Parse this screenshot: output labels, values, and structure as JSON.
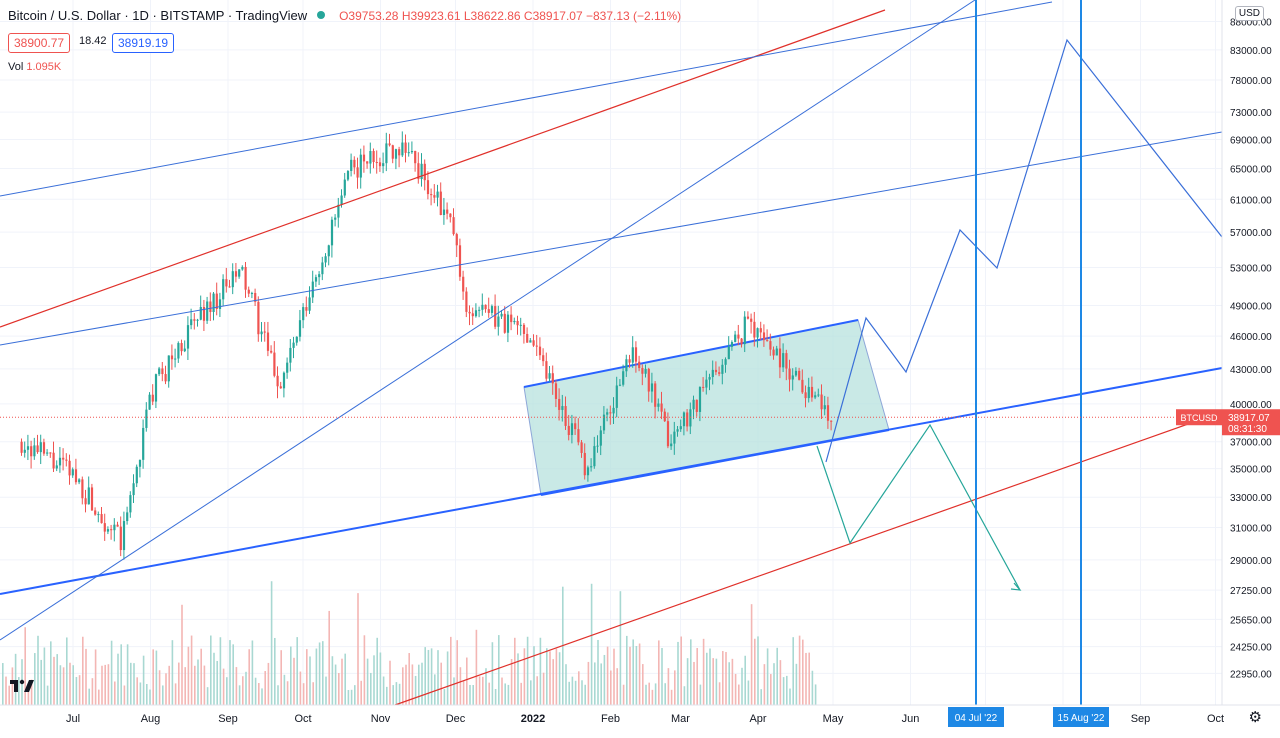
{
  "header": {
    "title": "Bitcoin / U.S. Dollar · 1D · BITSTAMP · TradingView",
    "ohlc": "O39753.28 H39923.61 L38622.86 C38917.07 −837.13 (−2.11%)",
    "bid": "38900.77",
    "spread": "18.42",
    "ask": "38919.19",
    "volume_label": "Vol",
    "volume_value": "1.095K"
  },
  "currency_badge": "USD",
  "price_tag": {
    "symbol": "BTCUSD",
    "price": "38917.07",
    "countdown": "08:31:30"
  },
  "colors": {
    "up": "#26a69a",
    "down": "#ef5350",
    "trend_blue": "#2962ff",
    "thin_blue": "#3a6fd8",
    "red_line": "#e0302a",
    "channel_fill": "#b2dfdb",
    "projection_green": "#26a69a",
    "vline": "#1e88e5"
  },
  "icons": [
    "tradingview-logo-icon",
    "settings-gear-icon"
  ],
  "chart_data": {
    "type": "candlestick",
    "y_axis_ticks": [
      88000,
      83000,
      78000,
      73000,
      69000,
      65000,
      61000,
      57000,
      53000,
      49000,
      46000,
      43000,
      40000,
      37000,
      35000,
      33000,
      31000,
      29000,
      27250,
      25650,
      24250,
      22950
    ],
    "x_axis_ticks": [
      "Jul",
      "Aug",
      "Sep",
      "Oct",
      "Nov",
      "Dec",
      "2022",
      "Feb",
      "Mar",
      "Apr",
      "May",
      "Jun",
      "Jul",
      "Aug",
      "Sep",
      "Oct"
    ],
    "x_axis_highlights": [
      "04 Jul '22",
      "15 Aug '22"
    ],
    "ylim": [
      21500,
      92000
    ],
    "monthly_closes": [
      {
        "date": "2021-06-10",
        "price": 37000
      },
      {
        "date": "2021-07-01",
        "price": 34500
      },
      {
        "date": "2021-07-20",
        "price": 30000
      },
      {
        "date": "2021-08-01",
        "price": 41000
      },
      {
        "date": "2021-08-20",
        "price": 48000
      },
      {
        "date": "2021-09-06",
        "price": 52500
      },
      {
        "date": "2021-09-21",
        "price": 41500
      },
      {
        "date": "2021-10-01",
        "price": 48000
      },
      {
        "date": "2021-10-20",
        "price": 65000
      },
      {
        "date": "2021-11-10",
        "price": 68500
      },
      {
        "date": "2021-11-30",
        "price": 57000
      },
      {
        "date": "2021-12-04",
        "price": 49000
      },
      {
        "date": "2021-12-31",
        "price": 46300
      },
      {
        "date": "2022-01-22",
        "price": 35000
      },
      {
        "date": "2022-02-10",
        "price": 45000
      },
      {
        "date": "2022-02-24",
        "price": 37000
      },
      {
        "date": "2022-03-28",
        "price": 47500
      },
      {
        "date": "2022-04-30",
        "price": 38917
      }
    ],
    "current_price": 38917.07
  }
}
